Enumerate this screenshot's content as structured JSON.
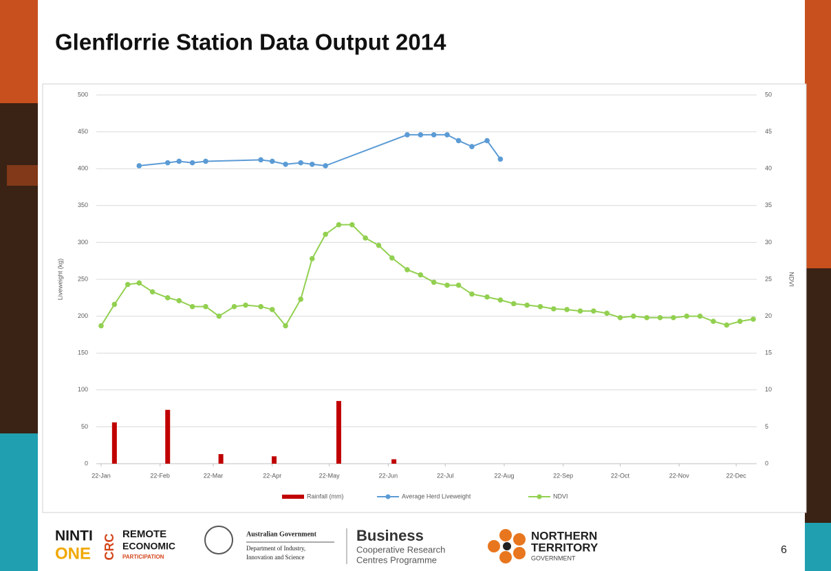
{
  "slide": {
    "title": "Glenflorrie Station Data Output 2014",
    "page_number": "6",
    "logos": {
      "ninti": "NINTI",
      "one": "ONE",
      "crc": "CRC",
      "remote": "REMOTE",
      "economic": "ECONOMIC",
      "participation": "PARTICIPATION",
      "aus_gov": "Australian Government",
      "dept1": "Department of Industry,",
      "dept2": "Innovation and Science",
      "business": "Business",
      "coop1": "Cooperative Research",
      "coop2": "Centres Programme",
      "nt1": "NORTHERN",
      "nt2": "TERRITORY",
      "nt3": "GOVERNMENT"
    }
  },
  "chart_data": {
    "type": "combo",
    "y_label": "Liveweight (kg)",
    "y2_label": "NDVI",
    "xlim": [
      "22-Jan",
      "31-Dec"
    ],
    "xticks": [
      "22-Jan",
      "22-Feb",
      "22-Mar",
      "22-Apr",
      "22-May",
      "22-Jun",
      "22-Jul",
      "22-Aug",
      "22-Sep",
      "22-Oct",
      "22-Nov",
      "22-Dec"
    ],
    "ylim": [
      0,
      500
    ],
    "yticks": [
      0,
      50,
      100,
      150,
      200,
      250,
      300,
      350,
      400,
      450,
      500
    ],
    "y2lim": [
      0,
      50
    ],
    "y2ticks": [
      0,
      5,
      10,
      15,
      20,
      25,
      30,
      35,
      40,
      45,
      50
    ],
    "grid": true,
    "legend": "bottom",
    "series": [
      {
        "name": "Rainfall (mm)",
        "type": "bar",
        "color": "#c00000",
        "x": [
          "29-Jan",
          "26-Feb",
          "26-Mar",
          "23-Apr",
          "27-May",
          "25-Jun"
        ],
        "values": [
          56,
          73,
          13,
          10,
          85,
          6
        ]
      },
      {
        "name": "Average Herd Liveweight",
        "type": "line",
        "color": "#5b9bd5",
        "x": [
          "11-Feb",
          "26-Feb",
          "04-Mar",
          "11-Mar",
          "18-Mar",
          "16-Apr",
          "22-Apr",
          "29-Apr",
          "07-May",
          "13-May",
          "20-May",
          "02-Jul",
          "09-Jul",
          "16-Jul",
          "23-Jul",
          "29-Jul",
          "05-Aug",
          "13-Aug",
          "20-Aug"
        ],
        "values": [
          404,
          408,
          410,
          408,
          410,
          412,
          410,
          406,
          408,
          406,
          404,
          446,
          446,
          446,
          446,
          438,
          430,
          438,
          413
        ]
      },
      {
        "name": "NDVI",
        "type": "line",
        "axis": "y2",
        "color": "#92d050",
        "x": [
          "22-Jan",
          "29-Jan",
          "05-Feb",
          "11-Feb",
          "18-Feb",
          "26-Feb",
          "04-Mar",
          "11-Mar",
          "18-Mar",
          "25-Mar",
          "02-Apr",
          "08-Apr",
          "16-Apr",
          "22-Apr",
          "29-Apr",
          "07-May",
          "13-May",
          "20-May",
          "27-May",
          "03-Jun",
          "10-Jun",
          "17-Jun",
          "24-Jun",
          "02-Jul",
          "09-Jul",
          "16-Jul",
          "23-Jul",
          "29-Jul",
          "05-Aug",
          "13-Aug",
          "20-Aug",
          "27-Aug",
          "03-Sep",
          "10-Sep",
          "17-Sep",
          "24-Sep",
          "01-Oct",
          "08-Oct",
          "15-Oct",
          "22-Oct",
          "29-Oct",
          "05-Nov",
          "12-Nov",
          "19-Nov",
          "26-Nov",
          "03-Dec",
          "10-Dec",
          "17-Dec",
          "24-Dec",
          "31-Dec"
        ],
        "values": [
          18.7,
          21.6,
          24.3,
          24.5,
          23.3,
          22.5,
          22.1,
          21.3,
          21.3,
          20.0,
          21.3,
          21.5,
          21.3,
          20.9,
          18.7,
          22.3,
          27.8,
          31.1,
          32.4,
          32.4,
          30.6,
          29.6,
          27.9,
          26.3,
          25.6,
          24.6,
          24.2,
          24.2,
          23.0,
          22.6,
          22.2,
          21.7,
          21.5,
          21.3,
          21.0,
          20.9,
          20.7,
          20.7,
          20.4,
          19.8,
          20.0,
          19.8,
          19.8,
          19.8,
          20.0,
          20.0,
          19.3,
          18.8,
          19.3,
          19.6
        ]
      }
    ]
  }
}
